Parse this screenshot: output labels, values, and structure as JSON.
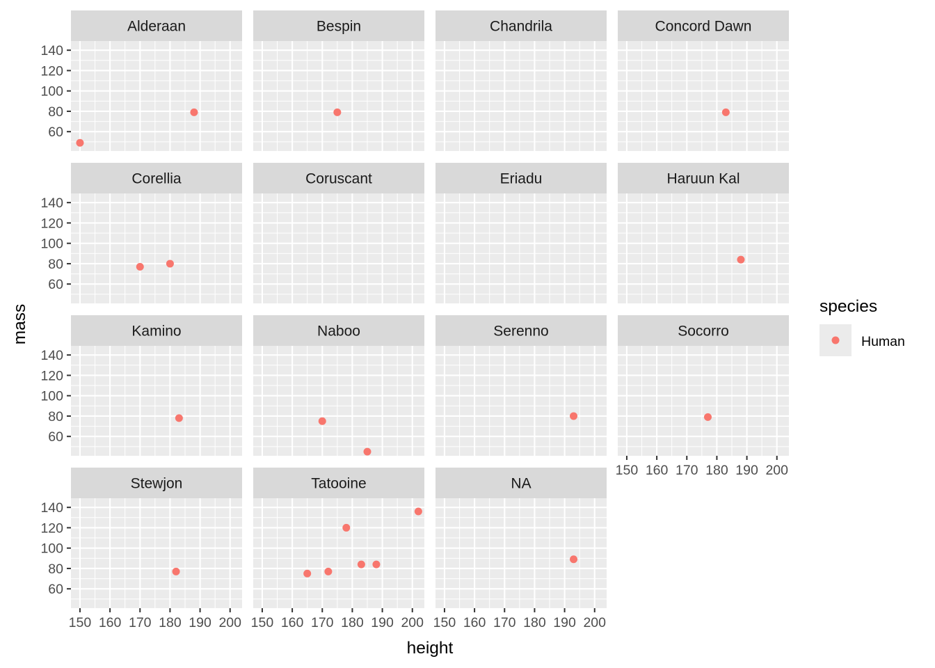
{
  "chart_data": {
    "type": "scatter",
    "layout": "facet_wrap",
    "ncol": 4,
    "xlabel": "height",
    "ylabel": "mass",
    "xlim": [
      147,
      204
    ],
    "ylim": [
      41,
      149
    ],
    "xticks": [
      150,
      160,
      170,
      180,
      190,
      200
    ],
    "yticks": [
      60,
      80,
      100,
      120,
      140
    ],
    "legend": {
      "title": "species",
      "position": "right",
      "entries": [
        {
          "label": "Human",
          "color": "#F8766D"
        }
      ]
    },
    "point_color": "#F8766D",
    "facets": [
      {
        "label": "Alderaan",
        "points": [
          {
            "x": 150,
            "y": 49
          },
          {
            "x": 188,
            "y": 79
          }
        ]
      },
      {
        "label": "Bespin",
        "points": [
          {
            "x": 175,
            "y": 79
          }
        ]
      },
      {
        "label": "Chandrila",
        "points": []
      },
      {
        "label": "Concord Dawn",
        "points": [
          {
            "x": 183,
            "y": 79
          }
        ]
      },
      {
        "label": "Corellia",
        "points": [
          {
            "x": 170,
            "y": 77
          },
          {
            "x": 180,
            "y": 80
          }
        ]
      },
      {
        "label": "Coruscant",
        "points": []
      },
      {
        "label": "Eriadu",
        "points": []
      },
      {
        "label": "Haruun Kal",
        "points": [
          {
            "x": 188,
            "y": 84
          }
        ]
      },
      {
        "label": "Kamino",
        "points": [
          {
            "x": 183,
            "y": 78
          }
        ]
      },
      {
        "label": "Naboo",
        "points": [
          {
            "x": 170,
            "y": 75
          },
          {
            "x": 185,
            "y": 45
          }
        ]
      },
      {
        "label": "Serenno",
        "points": [
          {
            "x": 193,
            "y": 80
          }
        ]
      },
      {
        "label": "Socorro",
        "points": [
          {
            "x": 177,
            "y": 79
          }
        ]
      },
      {
        "label": "Stewjon",
        "points": [
          {
            "x": 182,
            "y": 77
          }
        ]
      },
      {
        "label": "Tatooine",
        "points": [
          {
            "x": 165,
            "y": 75
          },
          {
            "x": 172,
            "y": 77
          },
          {
            "x": 178,
            "y": 120
          },
          {
            "x": 183,
            "y": 84
          },
          {
            "x": 188,
            "y": 84
          },
          {
            "x": 202,
            "y": 136
          }
        ]
      },
      {
        "label": "NA",
        "points": [
          {
            "x": 193,
            "y": 89
          }
        ]
      }
    ]
  }
}
